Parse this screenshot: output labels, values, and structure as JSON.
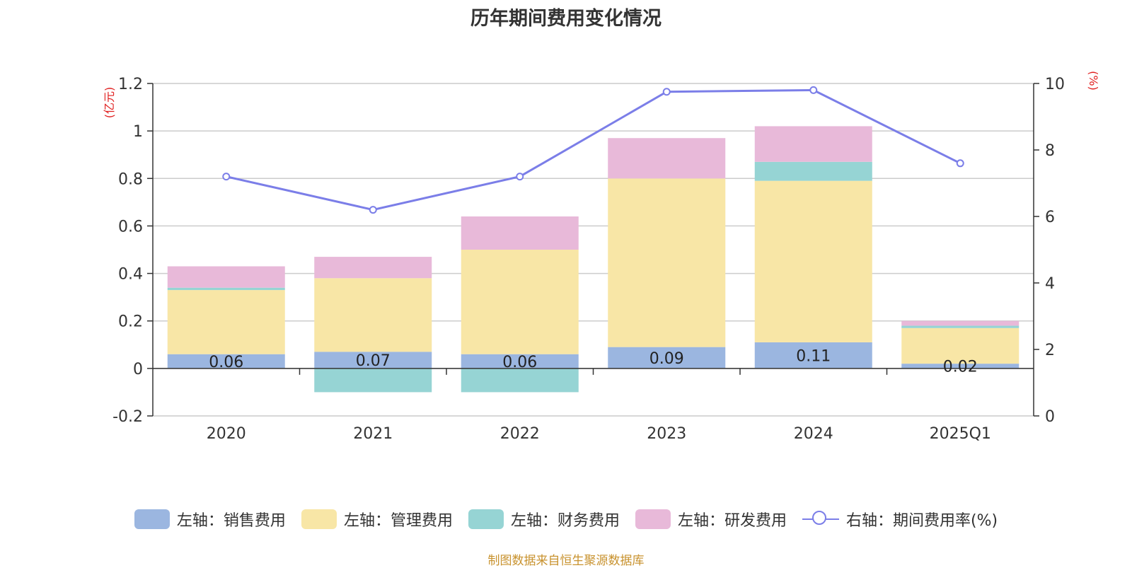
{
  "title": "历年期间费用变化情况",
  "source": "制图数据来自恒生聚源数据库",
  "colors": {
    "sales": "#9bb6e0",
    "admin": "#f8e6a6",
    "finance": "#96d4d4",
    "rd": "#e8b9d9",
    "rate": "#7b7ee8",
    "axis_unit": "#e02020",
    "grid": "#cccccc"
  },
  "chart_data": {
    "type": "bar",
    "stacked": true,
    "categories": [
      "2020",
      "2021",
      "2022",
      "2023",
      "2024",
      "2025Q1"
    ],
    "y_left": {
      "unit": "(亿元)",
      "min": -0.2,
      "max": 1.2,
      "ticks": [
        -0.2,
        0,
        0.2,
        0.4,
        0.6,
        0.8,
        1,
        1.2
      ],
      "tick_labels": [
        "-0.2",
        "0",
        "0.2",
        "0.4",
        "0.6",
        "0.8",
        "1",
        "1.2"
      ]
    },
    "y_right": {
      "unit": "(%)",
      "min": 0,
      "max": 10,
      "ticks": [
        0,
        2,
        4,
        6,
        8,
        10
      ],
      "tick_labels": [
        "0",
        "2",
        "4",
        "6",
        "8",
        "10"
      ]
    },
    "grid": true,
    "legend_position": "bottom",
    "series": [
      {
        "name": "左轴：销售费用",
        "key": "sales",
        "axis": "left",
        "type": "bar",
        "values": [
          0.06,
          0.07,
          0.06,
          0.09,
          0.11,
          0.02
        ],
        "labels": [
          "0.06",
          "0.07",
          "0.06",
          "0.09",
          "0.11",
          "0.02"
        ]
      },
      {
        "name": "左轴：管理费用",
        "key": "admin",
        "axis": "left",
        "type": "bar",
        "values": [
          0.27,
          0.31,
          0.44,
          0.71,
          0.68,
          0.15
        ]
      },
      {
        "name": "左轴：财务费用",
        "key": "finance",
        "axis": "left",
        "type": "bar",
        "values": [
          0.01,
          -0.1,
          -0.1,
          0.0,
          0.08,
          0.01
        ]
      },
      {
        "name": "左轴：研发费用",
        "key": "rd",
        "axis": "left",
        "type": "bar",
        "values": [
          0.09,
          0.09,
          0.14,
          0.17,
          0.15,
          0.02
        ]
      },
      {
        "name": "右轴：期间费用率(%)",
        "key": "rate",
        "axis": "right",
        "type": "line",
        "values": [
          7.2,
          6.2,
          7.2,
          9.75,
          9.8,
          7.6
        ]
      }
    ]
  }
}
